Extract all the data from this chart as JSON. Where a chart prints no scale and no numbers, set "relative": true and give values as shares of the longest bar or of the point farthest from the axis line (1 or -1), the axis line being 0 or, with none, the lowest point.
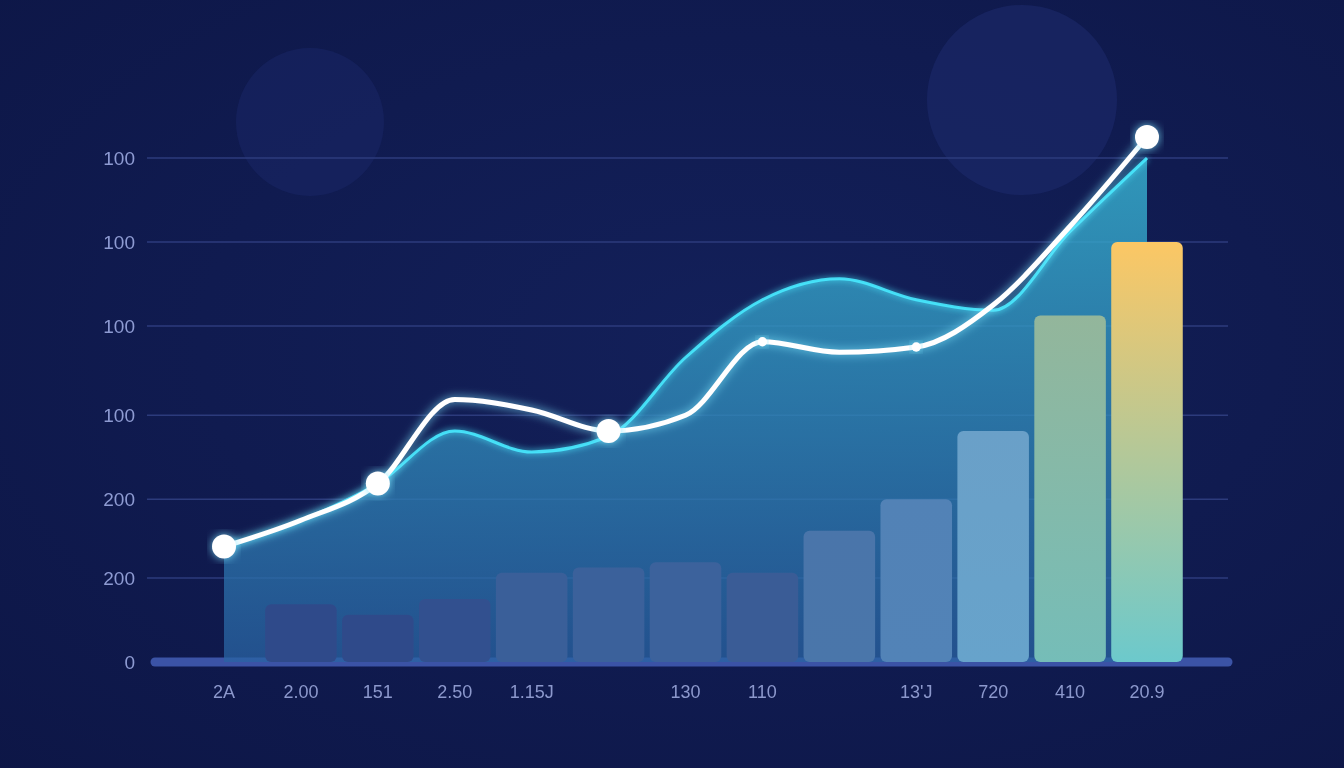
{
  "chart_data": {
    "type": "bar",
    "relative": true,
    "categories": [
      "2A",
      "2.00",
      "151",
      "2.50",
      "1.15J",
      null,
      "130",
      "110",
      null,
      "13'J",
      "720",
      "410",
      "20.9"
    ],
    "ref_lines": [
      {
        "axis": "y",
        "value": 0.96,
        "color": "#2c3b7c"
      },
      {
        "axis": "y",
        "value": 0.8,
        "color": "#2c3b7c"
      },
      {
        "axis": "y",
        "value": 0.64,
        "color": "#2c3b7c"
      },
      {
        "axis": "y",
        "value": 0.47,
        "color": "#2c3b7c"
      },
      {
        "axis": "y",
        "value": 0.31,
        "color": "#2c3b7c"
      },
      {
        "axis": "y",
        "value": 0.16,
        "color": "#2c3b7c"
      }
    ],
    "annotations": [
      "100",
      "100",
      "100",
      "100",
      "200",
      "200",
      "0"
    ],
    "series": [
      {
        "type": "area",
        "color": "#38b6d4",
        "values": [
          0.22,
          0.27,
          0.34,
          0.44,
          0.4,
          0.43,
          0.58,
          0.69,
          0.73,
          0.69,
          0.67,
          0.82,
          0.96
        ]
      },
      {
        "values": [
          null,
          0.11,
          0.09,
          0.12,
          0.17,
          0.18,
          0.19,
          0.17,
          0.25,
          0.31,
          0.44,
          0.66,
          0.8
        ],
        "colors": [
          null,
          "#2f4a8a",
          "#2f4a8a",
          "#32508f",
          "#3a5f99",
          "#3b619b",
          "#3c629c",
          "#3a5c96",
          "#4a75aa",
          "#5282b6",
          "#6aa0c8",
          "#93b69b",
          "#fcc764"
        ]
      },
      {
        "type": "line",
        "color": "#ffffff",
        "values": [
          0.22,
          0.27,
          0.34,
          0.5,
          0.48,
          0.44,
          0.47,
          0.61,
          0.59,
          0.6,
          0.68,
          0.83,
          1
        ]
      },
      {
        "type": "bubble",
        "color": "#ffffff",
        "marker": "circle",
        "values": [
          0.22,
          null,
          0.34,
          null,
          null,
          0.44,
          null,
          0.61,
          null,
          0.6,
          null,
          null,
          1
        ],
        "sizes": [
          1,
          null,
          1,
          null,
          null,
          1,
          null,
          0.15,
          null,
          0.15,
          null,
          null,
          1
        ]
      }
    ]
  }
}
